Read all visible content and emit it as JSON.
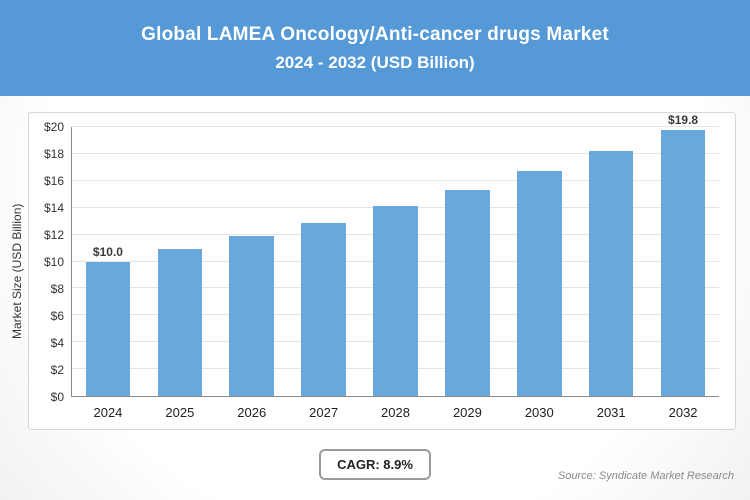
{
  "header": {
    "title_line1": "Global LAMEA Oncology/Anti-cancer drugs Market",
    "title_line2": "2024 - 2032 (USD Billion)"
  },
  "chart_data": {
    "type": "bar",
    "title": "Global LAMEA Oncology/Anti-cancer drugs Market 2024 - 2032 (USD Billion)",
    "categories": [
      "2024",
      "2025",
      "2026",
      "2027",
      "2028",
      "2029",
      "2030",
      "2031",
      "2032"
    ],
    "values": [
      10.0,
      10.9,
      11.9,
      12.9,
      14.1,
      15.3,
      16.7,
      18.2,
      19.8
    ],
    "bar_labels": [
      "$10.0",
      "",
      "",
      "",
      "",
      "",
      "",
      "",
      "$19.8"
    ],
    "xlabel": "",
    "ylabel": "Market Size (USD Billion)",
    "ylim": [
      0,
      20
    ],
    "ytick_step": 2,
    "yticks": [
      "$0",
      "$2",
      "$4",
      "$6",
      "$8",
      "$10",
      "$12",
      "$14",
      "$16",
      "$18",
      "$20"
    ],
    "grid": true,
    "legend": "none",
    "bar_color": "#6aa7dc"
  },
  "footer": {
    "cagr_label": "CAGR: 8.9%",
    "source": "Source: Syndicate Market Research"
  },
  "colors": {
    "header_bg": "#5599d6",
    "bar": "#6aa7dc",
    "gridline": "#e4e4e4"
  }
}
